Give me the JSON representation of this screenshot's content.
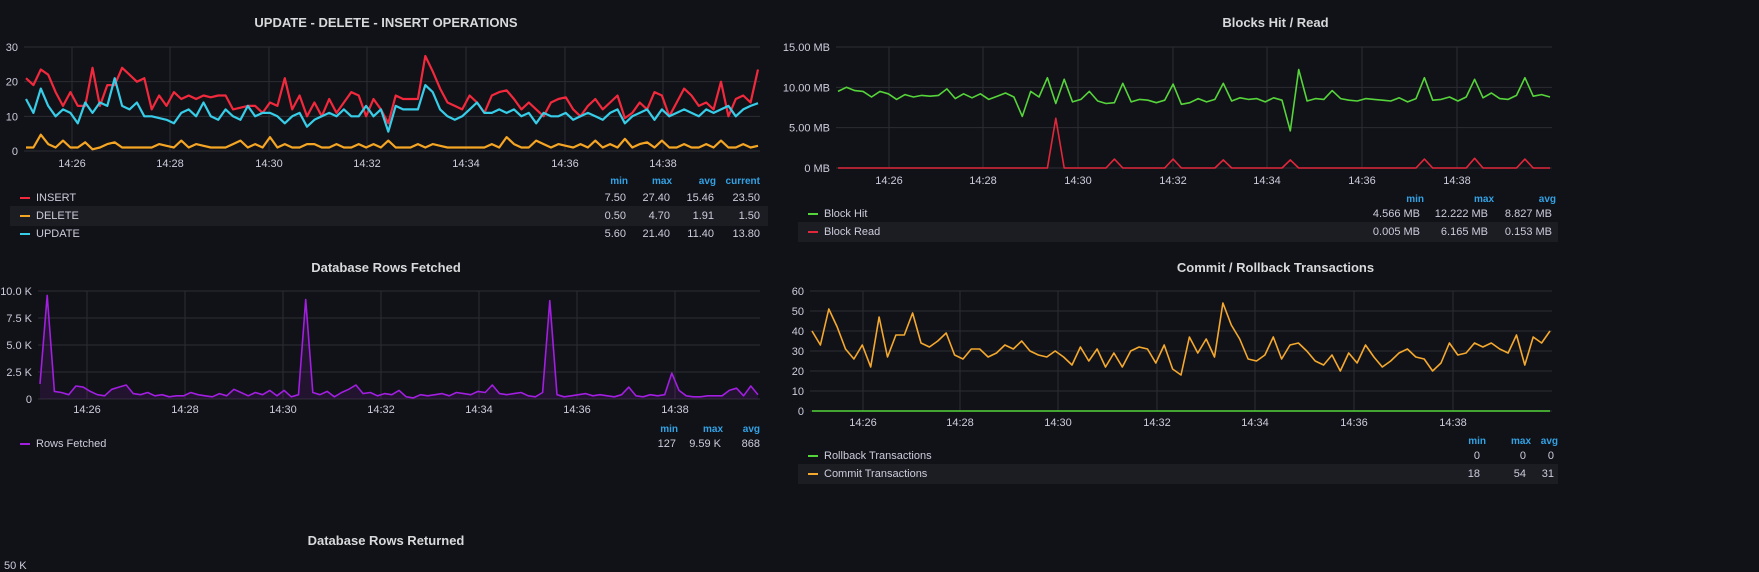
{
  "colors": {
    "insert": "#f2293d",
    "delete": "#f5a524",
    "update": "#37cde8",
    "green": "#56d43b",
    "red": "#e0273b",
    "purple": "#a21ee0",
    "orange": "#f4a82e",
    "header_blue": "#33a2e5"
  },
  "panels": {
    "ops": {
      "title": "UPDATE - DELETE - INSERT OPERATIONS",
      "legend_headers": [
        "min",
        "max",
        "avg",
        "current"
      ],
      "legend": [
        {
          "name": "INSERT",
          "values": [
            "7.50",
            "27.40",
            "15.46",
            "23.50"
          ]
        },
        {
          "name": "DELETE",
          "values": [
            "0.50",
            "4.70",
            "1.91",
            "1.50"
          ]
        },
        {
          "name": "UPDATE",
          "values": [
            "5.60",
            "21.40",
            "11.40",
            "13.80"
          ]
        }
      ]
    },
    "blocks": {
      "title": "Blocks Hit / Read",
      "legend_headers": [
        "min",
        "max",
        "avg"
      ],
      "legend": [
        {
          "name": "Block Hit",
          "values": [
            "4.566 MB",
            "12.222 MB",
            "8.827 MB"
          ]
        },
        {
          "name": "Block Read",
          "values": [
            "0.005 MB",
            "6.165 MB",
            "0.153 MB"
          ]
        }
      ]
    },
    "fetched": {
      "title": "Database Rows Fetched",
      "legend_headers": [
        "min",
        "max",
        "avg"
      ],
      "legend": [
        {
          "name": "Rows Fetched",
          "values": [
            "127",
            "9.59 K",
            "868"
          ]
        }
      ]
    },
    "commit": {
      "title": "Commit / Rollback Transactions",
      "legend_headers": [
        "min",
        "max",
        "avg"
      ],
      "legend": [
        {
          "name": "Rollback Transactions",
          "values": [
            "0",
            "0",
            "0"
          ]
        },
        {
          "name": "Commit Transactions",
          "values": [
            "18",
            "54",
            "31"
          ]
        }
      ]
    },
    "returned": {
      "title": "Database Rows Returned",
      "partial_tick": "50 K"
    }
  },
  "chart_data": [
    {
      "type": "line",
      "title": "UPDATE - DELETE - INSERT OPERATIONS",
      "x_ticks": [
        "14:26",
        "14:28",
        "14:30",
        "14:32",
        "14:34",
        "14:36",
        "14:38"
      ],
      "y_ticks": [
        "0",
        "10",
        "20",
        "30"
      ],
      "ylim": [
        0,
        30
      ],
      "series": [
        {
          "name": "INSERT",
          "values": [
            21,
            19,
            23.5,
            22,
            17,
            13,
            17,
            13,
            13,
            24,
            13,
            19,
            19,
            24,
            22,
            20,
            21,
            12,
            16,
            13,
            17,
            15,
            16,
            15,
            16,
            15.5,
            16,
            16,
            12,
            12.5,
            13,
            13,
            11,
            14,
            13,
            21,
            12,
            16,
            10,
            14,
            10,
            15,
            11,
            14,
            17,
            16,
            10,
            15,
            12,
            8,
            16,
            15,
            15,
            15,
            27.4,
            23,
            18,
            14,
            13,
            12,
            16,
            14,
            11,
            16,
            17,
            17.5,
            15,
            12,
            14,
            12,
            10,
            14,
            15,
            15.5,
            12,
            10,
            13,
            15,
            12,
            14,
            16,
            9.5,
            11,
            14,
            12,
            17,
            16,
            10,
            14,
            18,
            16,
            13,
            14,
            12,
            20,
            10,
            15,
            16,
            14,
            23.5
          ]
        },
        {
          "name": "DELETE",
          "values": [
            1,
            1,
            4.7,
            2,
            1,
            3,
            1,
            1,
            2.5,
            0.5,
            1,
            2,
            2.5,
            1,
            1,
            1,
            1,
            1,
            2,
            1.5,
            1,
            3,
            1,
            2,
            1.5,
            1,
            1,
            1,
            2,
            3,
            1,
            2,
            1,
            4,
            1,
            2,
            1,
            1,
            2,
            2,
            1,
            1,
            2,
            1,
            1,
            2,
            1,
            2,
            1,
            3,
            1,
            1,
            1,
            2,
            1,
            2,
            1.5,
            1,
            1,
            1,
            1,
            1,
            1,
            2,
            1,
            4,
            2,
            1,
            1,
            3,
            2,
            1,
            2,
            1.5,
            1,
            2,
            1,
            3,
            1,
            2,
            1,
            3.5,
            1,
            2,
            2.5,
            1,
            3,
            1,
            1,
            2,
            1,
            1,
            2,
            1,
            3,
            1,
            1,
            2,
            1,
            1.5
          ]
        },
        {
          "name": "UPDATE",
          "values": [
            15,
            11,
            18,
            13,
            10,
            12,
            11,
            8,
            14,
            11,
            14,
            13,
            21,
            13,
            12,
            14,
            10,
            10,
            9.5,
            9,
            8,
            11,
            12,
            10,
            14,
            10,
            9,
            12,
            10,
            9,
            13,
            10,
            11,
            11,
            10,
            8,
            10,
            11,
            7,
            9,
            10,
            11,
            10,
            12,
            10,
            10,
            13,
            10,
            12,
            5.6,
            13,
            12,
            12,
            12,
            19,
            17,
            12,
            10,
            9,
            10,
            12,
            14,
            11,
            11,
            12,
            11,
            12,
            10,
            11,
            8,
            11,
            10,
            10,
            11,
            9,
            10,
            11,
            10,
            9,
            11,
            12,
            8,
            10,
            11,
            12,
            9,
            12,
            10,
            11,
            12,
            11,
            10,
            12,
            11,
            12,
            13,
            10,
            12,
            13,
            13.8
          ]
        }
      ]
    },
    {
      "type": "line",
      "title": "Blocks Hit / Read",
      "x_ticks": [
        "14:26",
        "14:28",
        "14:30",
        "14:32",
        "14:34",
        "14:36",
        "14:38"
      ],
      "y_ticks": [
        "0 MB",
        "5.00 MB",
        "10.00 MB",
        "15.00 MB"
      ],
      "ylim": [
        0,
        15
      ],
      "series": [
        {
          "name": "Block Hit",
          "values": [
            9.5,
            10,
            9.6,
            9.5,
            8.8,
            9.5,
            9.2,
            8.5,
            9.1,
            8.8,
            9,
            8.9,
            9,
            9.8,
            8.6,
            9.2,
            8.7,
            9.2,
            8.5,
            8.9,
            9.3,
            8.8,
            6.4,
            9.5,
            8.8,
            11.2,
            8,
            11,
            8.2,
            8.5,
            9.5,
            8.3,
            8,
            8.1,
            10.5,
            8.2,
            8.5,
            8.4,
            8.1,
            8.4,
            10.4,
            7.9,
            8.1,
            8.6,
            8.2,
            8.5,
            10.5,
            8.3,
            8.7,
            8.5,
            8.6,
            8.2,
            8.7,
            8.4,
            4.6,
            12.2,
            8.3,
            8.6,
            8.5,
            9.6,
            8.6,
            8.4,
            8.3,
            8.6,
            8.5,
            8.4,
            8.3,
            8.7,
            8.2,
            8.6,
            11.2,
            8.4,
            8.5,
            8.8,
            8.3,
            8.8,
            11,
            8.7,
            9.3,
            8.6,
            8.5,
            9,
            11.2,
            8.9,
            9.1,
            8.8
          ]
        },
        {
          "name": "Block Read",
          "values": [
            0,
            0,
            0,
            0,
            0,
            0,
            0,
            0,
            0,
            0,
            0,
            0,
            0,
            0,
            0,
            0,
            0,
            0,
            0,
            0,
            0,
            0,
            0,
            0,
            0,
            0,
            6.16,
            0,
            0,
            0,
            0,
            0,
            0,
            1.1,
            0,
            0,
            0,
            0,
            0,
            0,
            1.1,
            0,
            0,
            0,
            0,
            0,
            1,
            0,
            0,
            0,
            0,
            0,
            0,
            0,
            1,
            0,
            0,
            0,
            0,
            0,
            0,
            0,
            0,
            0,
            0,
            0,
            0,
            0,
            0,
            0,
            1.1,
            0,
            0,
            0,
            0,
            0,
            1.2,
            0,
            0,
            0,
            0,
            0,
            1.1,
            0,
            0,
            0
          ]
        }
      ]
    },
    {
      "type": "area",
      "title": "Database Rows Fetched",
      "x_ticks": [
        "14:26",
        "14:28",
        "14:30",
        "14:32",
        "14:34",
        "14:36",
        "14:38"
      ],
      "y_ticks": [
        "0",
        "2.5 K",
        "5.0 K",
        "7.5 K",
        "10.0 K"
      ],
      "ylim": [
        0,
        10
      ],
      "series": [
        {
          "name": "Rows Fetched",
          "values": [
            1.4,
            9.59,
            0.7,
            0.6,
            0.4,
            1.2,
            1.1,
            0.7,
            0.4,
            0.3,
            0.9,
            1.1,
            1.3,
            0.5,
            0.4,
            0.6,
            0.3,
            0.4,
            0.2,
            0.3,
            0.3,
            0.6,
            0.4,
            0.3,
            0.2,
            0.5,
            0.3,
            0.9,
            0.6,
            0.3,
            0.6,
            0.4,
            0.8,
            0.3,
            0.8,
            0.2,
            0.4,
            9.2,
            0.6,
            0.4,
            0.7,
            0.2,
            0.6,
            0.9,
            1.3,
            0.5,
            0.6,
            0.3,
            0.5,
            0.4,
            0.8,
            0.2,
            0.1,
            0.4,
            0.3,
            0.4,
            0.5,
            0.3,
            0.6,
            0.5,
            0.4,
            0.7,
            0.6,
            1.3,
            0.5,
            0.4,
            0.5,
            0.6,
            0.3,
            0.2,
            0.6,
            9.1,
            0.4,
            0.2,
            0.3,
            0.4,
            0.5,
            0.3,
            0.4,
            0.3,
            0.2,
            0.4,
            1.1,
            0.3,
            0.2,
            0.4,
            0.3,
            0.4,
            2.4,
            0.8,
            0.3,
            0.2,
            0.2,
            0.3,
            0.3,
            0.3,
            0.8,
            1,
            0.3,
            1.2,
            0.4
          ]
        }
      ]
    },
    {
      "type": "line",
      "title": "Commit / Rollback Transactions",
      "x_ticks": [
        "14:26",
        "14:28",
        "14:30",
        "14:32",
        "14:34",
        "14:36",
        "14:38"
      ],
      "y_ticks": [
        "0",
        "10",
        "20",
        "30",
        "40",
        "50",
        "60"
      ],
      "ylim": [
        0,
        60
      ],
      "series": [
        {
          "name": "Rollback Transactions",
          "values": [
            0,
            0,
            0,
            0,
            0,
            0,
            0,
            0,
            0,
            0,
            0,
            0,
            0,
            0,
            0,
            0,
            0,
            0,
            0,
            0,
            0,
            0,
            0,
            0,
            0,
            0,
            0,
            0,
            0,
            0,
            0,
            0,
            0,
            0,
            0,
            0,
            0,
            0,
            0,
            0,
            0,
            0,
            0,
            0,
            0,
            0,
            0,
            0,
            0,
            0,
            0,
            0,
            0,
            0,
            0,
            0,
            0,
            0,
            0,
            0,
            0,
            0,
            0,
            0,
            0,
            0,
            0,
            0,
            0,
            0,
            0,
            0,
            0,
            0,
            0,
            0,
            0,
            0,
            0,
            0,
            0,
            0,
            0,
            0,
            0,
            0,
            0,
            0
          ]
        },
        {
          "name": "Commit Transactions",
          "values": [
            40,
            33,
            51,
            42,
            31,
            26,
            33,
            22,
            47,
            27,
            38,
            38,
            49,
            34,
            32,
            35,
            39,
            28,
            26,
            31,
            31,
            27,
            29,
            33,
            31,
            35,
            30,
            28,
            27,
            30,
            27,
            23,
            32,
            25,
            31,
            22,
            29,
            22,
            30,
            32,
            31,
            24,
            33,
            21,
            18,
            37,
            29,
            36,
            27,
            54,
            43,
            36,
            26,
            25,
            28,
            37,
            26,
            33,
            34,
            30,
            25,
            23,
            28,
            20,
            29,
            24,
            33,
            27,
            22,
            25,
            29,
            31,
            27,
            26,
            20,
            24,
            34,
            28,
            29,
            34,
            32,
            34,
            31,
            29,
            38,
            23,
            37,
            34,
            40
          ]
        }
      ]
    }
  ]
}
